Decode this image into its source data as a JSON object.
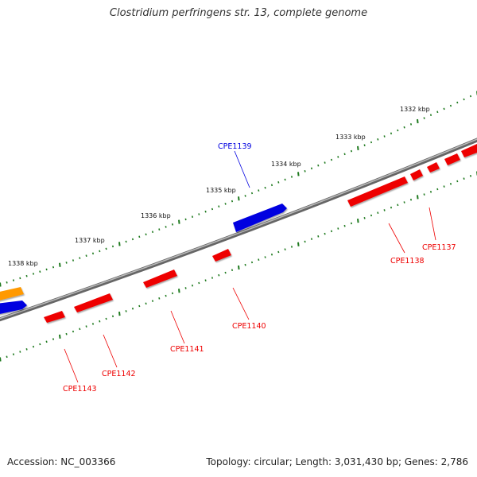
{
  "title": "Clostridium perfringens str. 13, complete genome",
  "accession_text": "Accession: NC_003366",
  "summary_text": "Topology: circular; Length: 3,031,430 bp; Genes: 2,786",
  "colors": {
    "backbone": "#888888",
    "tick": "#1f7a1f",
    "forward_strand": "#0000e0",
    "reverse_strand": "#ee0000",
    "other_feature": "#ff9900"
  },
  "scale_labels": [
    "1332 kbp",
    "1333 kbp",
    "1334 kbp",
    "1335 kbp",
    "1336 kbp",
    "1337 kbp",
    "1338 kbp"
  ],
  "gene_labels": [
    {
      "name": "CPE1139",
      "strand": "forward"
    },
    {
      "name": "CPE1137",
      "strand": "reverse"
    },
    {
      "name": "CPE1138",
      "strand": "reverse"
    },
    {
      "name": "CPE1140",
      "strand": "reverse"
    },
    {
      "name": "CPE1141",
      "strand": "reverse"
    },
    {
      "name": "CPE1142",
      "strand": "reverse"
    },
    {
      "name": "CPE1143",
      "strand": "reverse"
    }
  ]
}
